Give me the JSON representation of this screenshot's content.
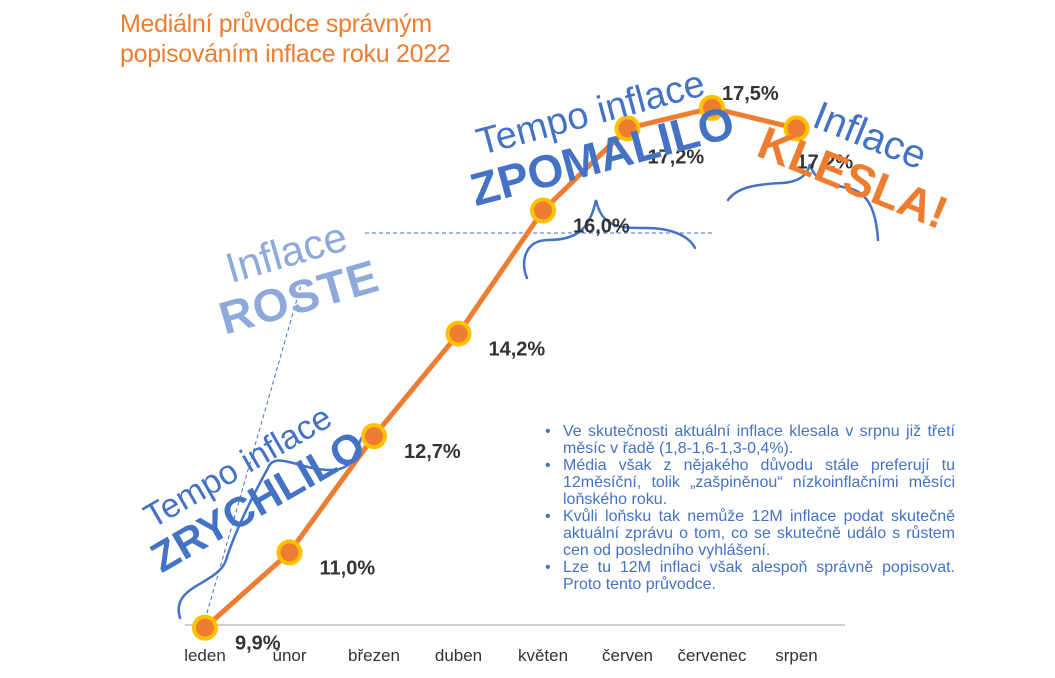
{
  "title": {
    "line1": "Mediální průvodce správným",
    "line2": "popisováním inflace roku 2022"
  },
  "annotations": {
    "zrychlilo": {
      "line1": "Tempo inflace",
      "line2": "ZRYCHLILO"
    },
    "roste": {
      "line1": "Inflace",
      "line2": "ROSTE"
    },
    "zpomalilo": {
      "line1": "Tempo inflace",
      "line2": "ZPOMALILO"
    },
    "klesla": {
      "line1": "Inflace",
      "line2": "KLESLA!"
    }
  },
  "notes": [
    "Ve skutečnosti aktuální inflace klesala v srpnu již třetí měsíc v řadě (1,8-1,6-1,3-0,4%).",
    "Média však z nějakého důvodu stále preferují tu 12měsíční, tolik „zašpiněnou“ nízkoinflačními měsíci loňského roku.",
    "Kvůli loňsku tak nemůže 12M inflace podat skutečně aktuální zprávu o tom, co se skutečně událo s růstem cen od posledního vyhlášení.",
    "Lze tu 12M inflaci však alespoň správně popisovat. Proto tento průvodce."
  ],
  "colors": {
    "line": "#ED7D31",
    "marker_fill": "#ED7D31",
    "marker_border": "#FFC000",
    "accent_blue": "#4472C4",
    "light_blue": "#8EAADB",
    "value_label": "#333333",
    "axis_label": "#333333"
  },
  "chart_data": {
    "type": "line",
    "categories": [
      "leden",
      "únor",
      "březen",
      "duben",
      "květen",
      "červen",
      "červenec",
      "srpen"
    ],
    "values": [
      9.9,
      11.0,
      12.7,
      14.2,
      16.0,
      17.2,
      17.5,
      17.2
    ],
    "value_labels": [
      "9,9%",
      "11,0%",
      "12,7%",
      "14,2%",
      "16,0%",
      "17,2%",
      "17,5%",
      "17,2%"
    ],
    "ylim": [
      9.5,
      18.2
    ],
    "grid": false,
    "legend": "none"
  }
}
